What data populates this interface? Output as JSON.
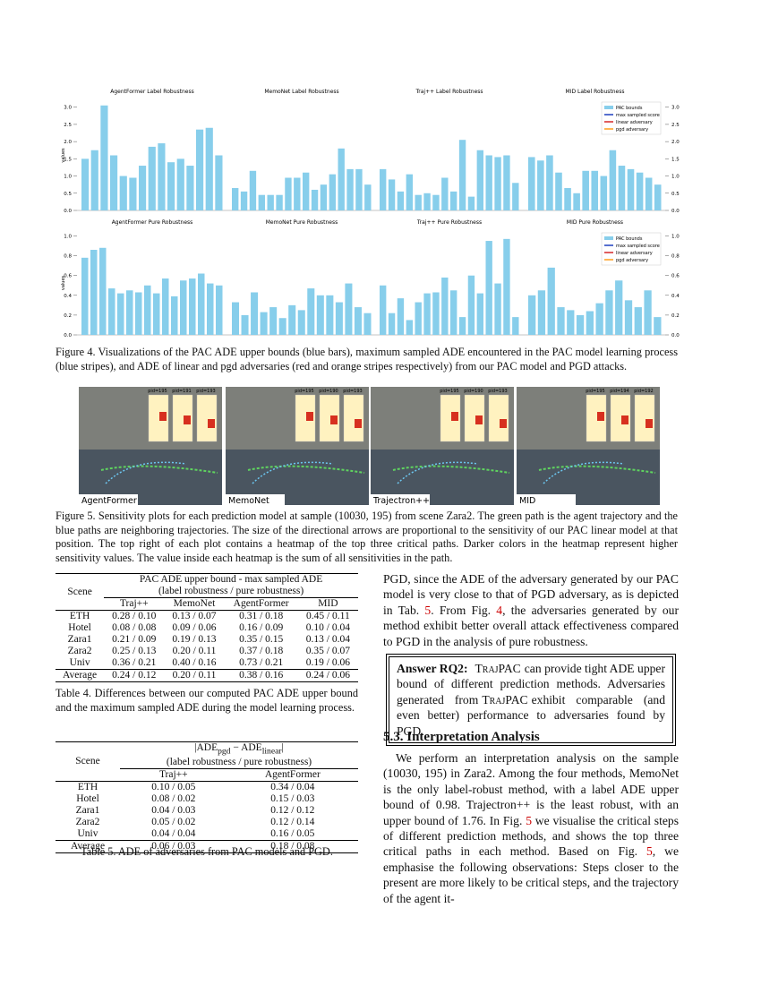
{
  "figure4": {
    "y_axis_label": "values",
    "caption": "Figure 4. Visualizations of the PAC ADE upper bounds (blue bars), maximum sampled ADE encountered in the PAC model learning process (blue stripes), and ADE of linear and pgd adversaries (red and orange stripes respectively) from our PAC model and PGD attacks.",
    "rows": [
      {
        "type": "bar",
        "ylim": [
          0,
          3.2
        ],
        "yticks": [
          {
            "value": 0,
            "label": "0.0"
          },
          0.5,
          {
            "value": 1,
            "label": "1.0"
          },
          1.5,
          {
            "value": 2,
            "label": "2.0"
          },
          2.5,
          {
            "value": 3,
            "label": "3.0"
          }
        ],
        "legend": [
          {
            "name": "PAC bounds",
            "color": "#87ceeb"
          },
          {
            "name": "max sampled score",
            "color": "#1f3fbf"
          },
          {
            "name": "linear adversary",
            "color": "#d62728"
          },
          {
            "name": "pgd adversary",
            "color": "#ff9f1c"
          }
        ],
        "panels": [
          {
            "title": "AgentFormer Label Robustness",
            "values": [
              1.5,
              1.75,
              3.05,
              1.6,
              1.0,
              0.95,
              1.3,
              1.85,
              1.95,
              1.4,
              1.5,
              1.3,
              2.35,
              2.4,
              1.6
            ]
          },
          {
            "title": "MemoNet Label Robustness",
            "values": [
              0.65,
              0.55,
              1.15,
              0.45,
              0.45,
              0.45,
              0.95,
              0.95,
              1.1,
              0.6,
              0.75,
              1.05,
              1.8,
              1.2,
              1.2,
              0.75
            ]
          },
          {
            "title": "Traj++ Label Robustness",
            "values": [
              1.2,
              0.9,
              0.55,
              1.05,
              0.45,
              0.5,
              0.45,
              0.95,
              0.55,
              2.05,
              0.4,
              1.75,
              1.6,
              1.55,
              1.6,
              0.8
            ]
          },
          {
            "title": "MID Label Robustness",
            "values": [
              1.55,
              1.45,
              1.6,
              1.1,
              0.65,
              0.5,
              1.15,
              1.15,
              1.0,
              1.75,
              1.3,
              1.2,
              1.1,
              0.95,
              0.75
            ]
          }
        ]
      },
      {
        "type": "bar",
        "ylim": [
          0,
          1.05
        ],
        "yticks": [
          {
            "value": 0,
            "label": "0.0"
          },
          0.2,
          0.4,
          0.6,
          0.8,
          {
            "value": 1,
            "label": "1.0"
          }
        ],
        "legend": [
          {
            "name": "PAC bounds",
            "color": "#87ceeb"
          },
          {
            "name": "max sampled score",
            "color": "#1f3fbf"
          },
          {
            "name": "linear adversary",
            "color": "#d62728"
          },
          {
            "name": "pgd adversary",
            "color": "#ff9f1c"
          }
        ],
        "panels": [
          {
            "title": "AgentFormer Pure Robustness",
            "values": [
              0.78,
              0.86,
              0.88,
              0.47,
              0.42,
              0.45,
              0.43,
              0.5,
              0.42,
              0.57,
              0.39,
              0.55,
              0.57,
              0.62,
              0.52,
              0.5
            ]
          },
          {
            "title": "MemoNet Pure Robustness",
            "values": [
              0.33,
              0.2,
              0.43,
              0.23,
              0.28,
              0.17,
              0.3,
              0.25,
              0.47,
              0.4,
              0.4,
              0.33,
              0.52,
              0.28,
              0.22
            ]
          },
          {
            "title": "Traj++ Pure Robustness",
            "values": [
              0.5,
              0.22,
              0.37,
              0.15,
              0.33,
              0.42,
              0.43,
              0.58,
              0.45,
              0.18,
              0.6,
              0.42,
              0.95,
              0.52,
              0.97,
              0.18
            ]
          },
          {
            "title": "MID Pure Robustness",
            "values": [
              0.4,
              0.45,
              0.68,
              0.28,
              0.25,
              0.2,
              0.24,
              0.32,
              0.45,
              0.55,
              0.35,
              0.28,
              0.45,
              0.18
            ]
          }
        ]
      }
    ]
  },
  "figure5": {
    "panels": [
      {
        "label": "AgentFormer",
        "pids": [
          "pid=195",
          "pid=191",
          "pid=193"
        ]
      },
      {
        "label": "MemoNet",
        "pids": [
          "pid=195",
          "pid=190",
          "pid=193"
        ]
      },
      {
        "label": "Trajectron++",
        "pids": [
          "pid=195",
          "pid=190",
          "pid=193"
        ]
      },
      {
        "label": "MID",
        "pids": [
          "pid=195",
          "pid=194",
          "pid=192"
        ]
      }
    ],
    "caption": "Figure 5. Sensitivity plots for each prediction model at sample (10030, 195) from scene Zara2. The green path is the agent trajectory and the blue paths are neighboring trajectories. The size of the directional arrows are proportional to the sensitivity of our PAC linear model at that position. The top right of each plot contains a heatmap of the top three critical paths. Darker colors in the heatmap represent higher sensitivity values. The value inside each heatmap is the sum of all sensitivities in the path."
  },
  "table4": {
    "scene_header": "Scene",
    "group_header": "PAC ADE upper bound - max sampled ADE",
    "group_subheader": "(label robustness / pure robustness)",
    "columns": [
      "Traj++",
      "MemoNet",
      "AgentFormer",
      "MID"
    ],
    "rows": [
      [
        "ETH",
        "0.28 / 0.10",
        "0.13 / 0.07",
        "0.31 / 0.18",
        "0.45 / 0.11"
      ],
      [
        "Hotel",
        "0.08 / 0.08",
        "0.09 / 0.06",
        "0.16 / 0.09",
        "0.10 / 0.04"
      ],
      [
        "Zara1",
        "0.21 / 0.09",
        "0.19 / 0.13",
        "0.35 / 0.15",
        "0.13 / 0.04"
      ],
      [
        "Zara2",
        "0.25 / 0.13",
        "0.20 / 0.11",
        "0.37 / 0.18",
        "0.35 / 0.07"
      ],
      [
        "Univ",
        "0.36 / 0.21",
        "0.40 / 0.16",
        "0.73 / 0.21",
        "0.19 / 0.06"
      ],
      [
        "Average",
        "0.24 / 0.12",
        "0.20 / 0.11",
        "0.38 / 0.16",
        "0.24 / 0.06"
      ]
    ],
    "caption": "Table 4. Differences between our computed PAC ADE upper bound and the maximum sampled ADE during the model learning process."
  },
  "table5": {
    "scene_header": "Scene",
    "group_header": [
      {
        "t": "|ADE"
      },
      {
        "sub": "pgd"
      },
      {
        "t": " − ADE"
      },
      {
        "sub": "linear"
      },
      {
        "t": "|"
      }
    ],
    "group_subheader": "(label robustness / pure robustness)",
    "columns": [
      "Traj++",
      "AgentFormer"
    ],
    "rows": [
      [
        "ETH",
        "0.10 / 0.05",
        "0.34 / 0.04"
      ],
      [
        "Hotel",
        "0.08 / 0.02",
        "0.15 / 0.03"
      ],
      [
        "Zara1",
        "0.04 / 0.03",
        "0.12 / 0.12"
      ],
      [
        "Zara2",
        "0.05 / 0.02",
        "0.12 / 0.14"
      ],
      [
        "Univ",
        "0.04 / 0.04",
        "0.16 / 0.05"
      ],
      [
        "Average",
        "0.06 / 0.03",
        "0.18 / 0.08"
      ]
    ],
    "caption": "Table 5. ADE of adversaries from PAC models and PGD."
  },
  "right": {
    "paragraph1": [
      {
        "t": "PGD, since the ADE of the adversary generated by our PAC model is very close to that of PGD adversary, as is depicted in Tab. "
      },
      {
        "ref": "5"
      },
      {
        "t": ". From Fig. "
      },
      {
        "ref": "4"
      },
      {
        "t": ", the adversaries generated by our method exhibit better overall attack effectiveness compared to PGD in the analysis of pure robustness."
      }
    ],
    "answer": [
      {
        "b": "Answer RQ2:"
      },
      {
        "sc": "TrajPAC"
      },
      {
        "t": "can provide tight ADE upper bound of different prediction methods. Adversaries generated from"
      },
      {
        "sc": "TrajPAC"
      },
      {
        "t": "exhibit comparable (and even better) performance to adversaries found by PGD."
      }
    ],
    "heading": "5.3. Interpretation Analysis",
    "paragraph2": [
      {
        "t": "We perform an interpretation analysis on the sample (10030, 195) in Zara2. Among the four methods, MemoNet is the only label-robust method, with a label ADE upper bound of 0.98. Trajectron++ is the least robust, with an upper bound of 1.76. In Fig. "
      },
      {
        "ref": "5"
      },
      {
        "t": " we visualise the critical steps of different prediction methods, and shows the top three critical paths in each method. Based on Fig. "
      },
      {
        "ref": "5"
      },
      {
        "t": ", we emphasise the following observations: Steps closer to the present are more likely to be critical steps, and the trajectory of the agent it-"
      }
    ]
  }
}
